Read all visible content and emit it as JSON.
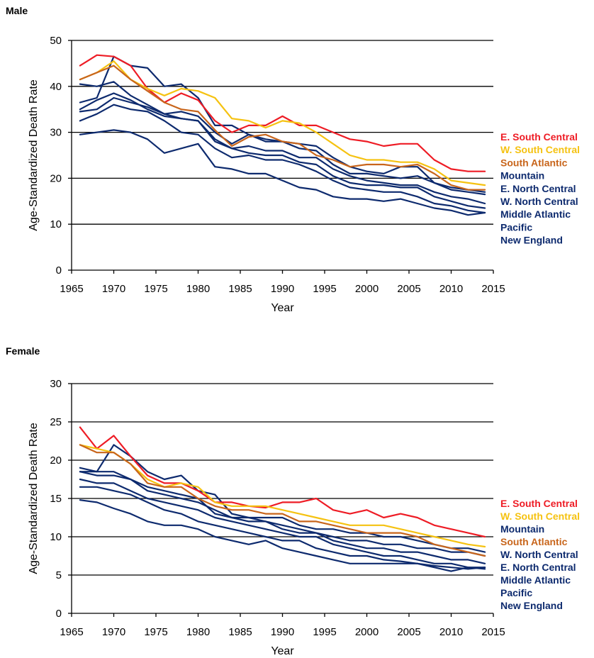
{
  "chart_data": [
    {
      "type": "line",
      "panel_title": "Male",
      "xlabel": "Year",
      "ylabel": "Age-Standardized Death Rate",
      "xlim": [
        1965,
        2015
      ],
      "ylim": [
        0,
        50
      ],
      "x_ticks": [
        1965,
        1970,
        1975,
        1980,
        1985,
        1990,
        1995,
        2000,
        2005,
        2010,
        2015
      ],
      "y_ticks": [
        0,
        10,
        20,
        30,
        40,
        50
      ],
      "gridlines_y": [
        10,
        20,
        30,
        40,
        50
      ],
      "legend_position": "right",
      "legend": [
        "E. South Central",
        "W. South Central",
        "South Atlantic",
        "Mountain",
        "E. North Central",
        "W. North Central",
        "Middle Atlantic",
        "Pacific",
        "New England"
      ],
      "x": [
        1966,
        1968,
        1970,
        1972,
        1974,
        1976,
        1978,
        1980,
        1982,
        1984,
        1986,
        1988,
        1990,
        1992,
        1994,
        1996,
        1998,
        2000,
        2002,
        2004,
        2006,
        2008,
        2010,
        2012,
        2014
      ],
      "series": [
        {
          "name": "E. South Central",
          "color": "#ee1c25",
          "values": [
            44.5,
            46.8,
            46.5,
            44.5,
            39.5,
            36.5,
            38.5,
            37.0,
            32.5,
            30.0,
            31.5,
            31.5,
            33.5,
            31.5,
            31.5,
            30.0,
            28.5,
            28.0,
            27.0,
            27.5,
            27.5,
            24.0,
            22.0,
            21.5,
            21.5
          ]
        },
        {
          "name": "W. South Central",
          "color": "#f5c211",
          "values": [
            41.5,
            43.0,
            45.5,
            41.5,
            39.5,
            38.0,
            39.5,
            39.0,
            37.5,
            33.0,
            32.5,
            31.0,
            32.5,
            32.0,
            30.0,
            27.5,
            25.0,
            24.0,
            24.0,
            23.5,
            23.5,
            22.0,
            19.5,
            19.0,
            18.5
          ]
        },
        {
          "name": "South Atlantic",
          "color": "#c8651b",
          "values": [
            41.5,
            43.0,
            44.5,
            41.5,
            39.0,
            36.5,
            35.0,
            34.5,
            30.5,
            27.0,
            29.0,
            29.5,
            28.0,
            27.5,
            25.0,
            24.0,
            22.5,
            23.0,
            23.0,
            22.5,
            23.0,
            21.0,
            18.5,
            17.5,
            17.5
          ]
        },
        {
          "name": "Mountain",
          "color": "#0d2a6e",
          "values": [
            36.5,
            37.5,
            46.5,
            44.5,
            44.0,
            40.0,
            40.5,
            37.5,
            31.5,
            31.5,
            29.5,
            28.5,
            28.0,
            27.5,
            27.0,
            24.5,
            22.5,
            21.5,
            21.0,
            22.5,
            22.5,
            19.0,
            18.0,
            17.5,
            17.0
          ]
        },
        {
          "name": "E. North Central",
          "color": "#0d2a6e",
          "values": [
            40.5,
            40.0,
            41.0,
            38.0,
            36.0,
            34.0,
            34.5,
            33.5,
            30.0,
            27.5,
            29.5,
            28.0,
            28.0,
            26.5,
            26.0,
            23.0,
            21.0,
            21.0,
            20.5,
            20.0,
            20.5,
            19.0,
            17.5,
            17.0,
            16.5
          ]
        },
        {
          "name": "W. North Central",
          "color": "#0d2a6e",
          "values": [
            35.0,
            37.0,
            38.5,
            37.0,
            35.0,
            33.5,
            33.0,
            32.5,
            28.0,
            26.5,
            27.0,
            26.0,
            26.0,
            24.5,
            24.5,
            22.0,
            20.5,
            19.5,
            19.0,
            18.5,
            18.5,
            17.0,
            16.0,
            15.5,
            14.5
          ]
        },
        {
          "name": "Middle Atlantic",
          "color": "#0d2a6e",
          "values": [
            34.5,
            35.0,
            37.5,
            36.5,
            35.5,
            34.0,
            33.0,
            32.5,
            28.5,
            26.5,
            25.5,
            25.0,
            25.0,
            23.5,
            23.0,
            20.5,
            19.0,
            18.5,
            18.5,
            18.0,
            18.0,
            16.0,
            15.0,
            14.0,
            13.5
          ]
        },
        {
          "name": "Pacific",
          "color": "#0d2a6e",
          "values": [
            32.5,
            34.0,
            36.0,
            35.0,
            34.5,
            32.5,
            30.0,
            29.5,
            26.5,
            24.5,
            25.0,
            24.0,
            24.0,
            23.0,
            21.5,
            19.5,
            18.0,
            17.5,
            17.0,
            17.0,
            16.0,
            14.5,
            14.0,
            13.0,
            12.5
          ]
        },
        {
          "name": "New England",
          "color": "#0d2a6e",
          "values": [
            29.5,
            30.0,
            30.5,
            30.0,
            28.5,
            25.5,
            26.5,
            27.5,
            22.5,
            22.0,
            21.0,
            21.0,
            19.5,
            18.0,
            17.5,
            16.0,
            15.5,
            15.5,
            15.0,
            15.5,
            14.5,
            13.5,
            13.0,
            12.0,
            12.5
          ]
        }
      ]
    },
    {
      "type": "line",
      "panel_title": "Female",
      "xlabel": "Year",
      "ylabel": "Age-Standardized Death Rate",
      "xlim": [
        1965,
        2015
      ],
      "ylim": [
        0,
        30
      ],
      "x_ticks": [
        1965,
        1970,
        1975,
        1980,
        1985,
        1990,
        1995,
        2000,
        2005,
        2010,
        2015
      ],
      "y_ticks": [
        0,
        5,
        10,
        15,
        20,
        25,
        30
      ],
      "gridlines_y": [
        5,
        10,
        15,
        20,
        25,
        30
      ],
      "legend_position": "right",
      "legend": [
        "E. South Central",
        "W. South Central",
        "Mountain",
        "South Atlantic",
        "W. North Central",
        "E. North Central",
        "Middle Atlantic",
        "Pacific",
        "New England"
      ],
      "x": [
        1966,
        1968,
        1970,
        1972,
        1974,
        1976,
        1978,
        1980,
        1982,
        1984,
        1986,
        1988,
        1990,
        1992,
        1994,
        1996,
        1998,
        2000,
        2002,
        2004,
        2006,
        2008,
        2010,
        2012,
        2014
      ],
      "series": [
        {
          "name": "E. South Central",
          "color": "#ee1c25",
          "values": [
            24.3,
            21.5,
            23.2,
            20.5,
            18.0,
            17.0,
            17.0,
            16.0,
            14.5,
            14.5,
            14.0,
            13.8,
            14.5,
            14.5,
            15.0,
            13.5,
            13.0,
            13.5,
            12.5,
            13.0,
            12.5,
            11.5,
            11.0,
            10.5,
            10.0
          ]
        },
        {
          "name": "W. South Central",
          "color": "#f5c211",
          "values": [
            22.0,
            21.5,
            21.0,
            19.5,
            17.5,
            16.5,
            17.0,
            16.5,
            14.5,
            14.0,
            14.0,
            14.0,
            13.5,
            13.0,
            12.5,
            12.0,
            11.5,
            11.5,
            11.5,
            11.0,
            10.5,
            10.0,
            9.5,
            9.0,
            8.7
          ]
        },
        {
          "name": "Mountain",
          "color": "#0d2a6e",
          "values": [
            18.5,
            18.5,
            22.0,
            20.5,
            18.5,
            17.5,
            18.0,
            16.0,
            15.5,
            13.0,
            12.5,
            12.5,
            12.5,
            11.5,
            11.0,
            11.0,
            10.5,
            10.5,
            10.0,
            10.0,
            9.5,
            9.0,
            8.5,
            8.5,
            8.0
          ]
        },
        {
          "name": "South Atlantic",
          "color": "#c8651b",
          "values": [
            22.0,
            21.0,
            21.0,
            19.5,
            17.0,
            16.5,
            16.5,
            15.0,
            14.0,
            13.5,
            13.5,
            13.0,
            13.0,
            12.0,
            12.0,
            11.5,
            11.0,
            10.5,
            10.5,
            10.5,
            10.0,
            9.0,
            8.5,
            8.0,
            7.5
          ]
        },
        {
          "name": "W. North Central",
          "color": "#0d2a6e",
          "values": [
            18.5,
            18.0,
            18.0,
            17.5,
            16.0,
            15.5,
            15.0,
            14.5,
            13.5,
            12.5,
            12.0,
            12.0,
            11.5,
            11.0,
            10.5,
            10.0,
            9.5,
            9.5,
            9.0,
            9.0,
            8.5,
            8.5,
            8.0,
            8.0,
            7.5
          ]
        },
        {
          "name": "E. North Central",
          "color": "#0d2a6e",
          "values": [
            19.0,
            18.5,
            18.5,
            17.5,
            16.5,
            16.0,
            15.5,
            15.0,
            13.0,
            12.5,
            12.5,
            12.0,
            11.0,
            10.5,
            10.5,
            9.5,
            9.0,
            8.5,
            8.5,
            8.0,
            8.0,
            7.5,
            7.0,
            7.0,
            6.5
          ]
        },
        {
          "name": "Middle Atlantic",
          "color": "#0d2a6e",
          "values": [
            17.5,
            17.0,
            17.0,
            16.0,
            15.0,
            14.5,
            14.0,
            13.5,
            12.5,
            12.0,
            11.5,
            11.0,
            10.5,
            10.0,
            10.0,
            9.0,
            8.5,
            8.0,
            7.5,
            7.5,
            7.0,
            6.5,
            6.5,
            6.0,
            6.0
          ]
        },
        {
          "name": "Pacific",
          "color": "#0d2a6e",
          "values": [
            16.5,
            16.5,
            16.0,
            15.5,
            14.5,
            13.5,
            13.0,
            12.0,
            11.5,
            11.0,
            10.5,
            10.0,
            9.5,
            9.5,
            8.5,
            8.0,
            7.5,
            7.5,
            7.0,
            6.8,
            6.5,
            6.2,
            6.0,
            5.8,
            6.0
          ]
        },
        {
          "name": "New England",
          "color": "#0d2a6e",
          "values": [
            14.8,
            14.5,
            13.7,
            13.0,
            12.0,
            11.5,
            11.5,
            11.0,
            10.0,
            9.5,
            9.0,
            9.5,
            8.5,
            8.0,
            7.5,
            7.0,
            6.5,
            6.5,
            6.5,
            6.5,
            6.5,
            6.0,
            5.5,
            6.0,
            5.8
          ]
        }
      ]
    }
  ]
}
